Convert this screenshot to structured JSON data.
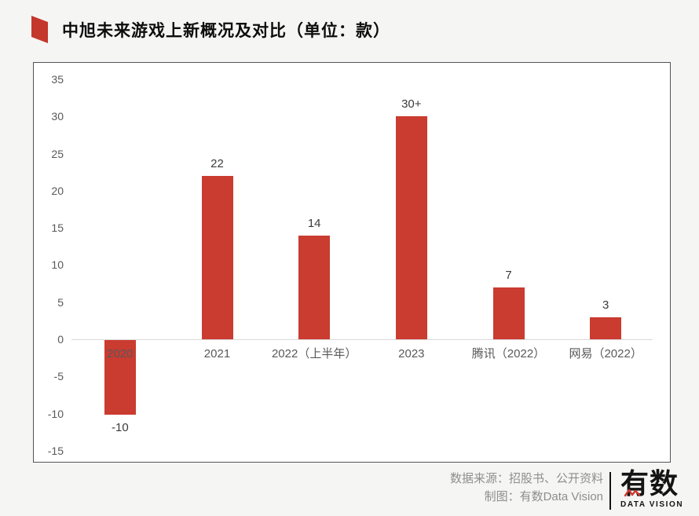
{
  "header": {
    "title": "中旭未来游戏上新概况及对比（单位：款）",
    "accent_color": "#c4372c"
  },
  "chart_data": {
    "type": "bar",
    "title": "中旭未来游戏上新概况及对比（单位：款）",
    "unit": "款",
    "categories": [
      "2020",
      "2021",
      "2022（上半年）",
      "2023",
      "腾讯（2022）",
      "网易（2022）"
    ],
    "values": [
      -10,
      22,
      14,
      30,
      7,
      3
    ],
    "value_labels": [
      "-10",
      "22",
      "14",
      "30+",
      "7",
      "3"
    ],
    "yticks": [
      35,
      30,
      25,
      20,
      15,
      10,
      5,
      0,
      -5,
      -10,
      -15
    ],
    "ylim": [
      -15,
      35
    ],
    "bar_color": "#ca3b30",
    "grid": false,
    "legend": "none",
    "xlabel": "",
    "ylabel": ""
  },
  "footer": {
    "source_line": "数据来源：招股书、公开资料",
    "credit_line": "制图：有数Data Vision",
    "logo_text": "有数",
    "logo_subtext": "DATA VISION",
    "logo_accent": "#d2382c"
  }
}
